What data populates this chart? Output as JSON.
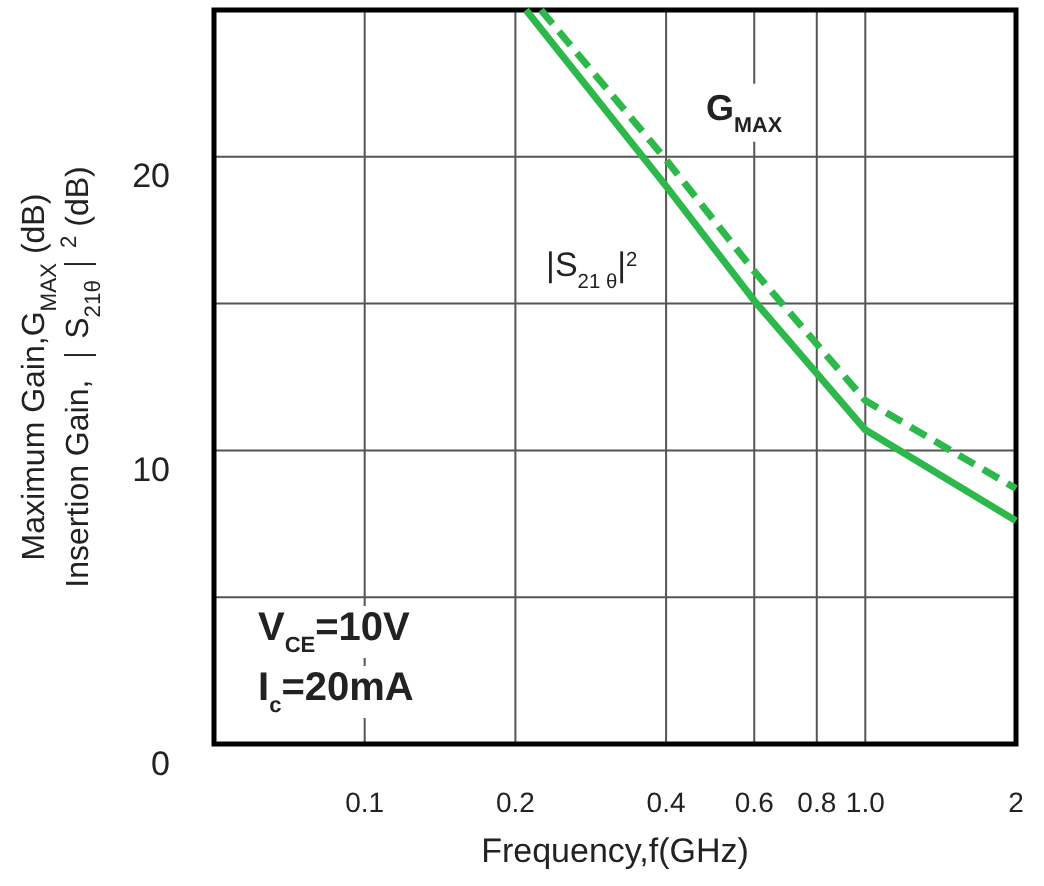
{
  "chart_data": {
    "type": "line",
    "xlabel": "Frequency,f(GHz)",
    "ylabel": "Maximum Gain,G$_{MAX}$ (dB)\nInsertion Gain, ｜S$_{21θ}$｜$^{2}$ (dB)",
    "log": "x",
    "grid": true,
    "marker": "none",
    "xlim": [
      0.05,
      2
    ],
    "xticks": [
      0.1,
      0.2,
      0.4,
      0.6,
      0.8,
      {
        "value": 1,
        "label": "1.0"
      },
      2
    ],
    "ylim": [
      0,
      25
    ],
    "yticks": [
      0,
      {
        "value": 5,
        "label": null
      },
      10,
      {
        "value": 15,
        "label": null
      },
      20
    ],
    "series": [
      {
        "name": "G$_{MAX}$",
        "color": "#2db84b",
        "line_style": "dashed",
        "x": [
          0.225,
          0.4,
          0.6,
          1.0,
          2
        ],
        "values": [
          25,
          19.9,
          16.1,
          11.7,
          8.7
        ]
      },
      {
        "name": "|S$_{21 θ}$|$^{2}$",
        "color": "#2db84b",
        "line_style": "solid",
        "x": [
          0.21,
          0.4,
          0.6,
          1.0,
          2
        ],
        "values": [
          25,
          19.0,
          15.1,
          10.7,
          7.6
        ]
      }
    ],
    "annotations": [
      "V$_{CE}$=10V",
      "I$_{c}$=20mA"
    ]
  }
}
